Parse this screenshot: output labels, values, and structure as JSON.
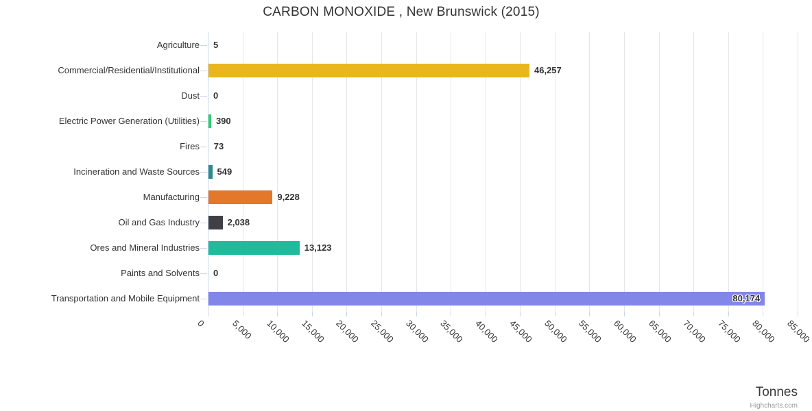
{
  "chart_data": {
    "type": "bar",
    "title": "CARBON MONOXIDE , New Brunswick (2015)",
    "xlabel": "Tonnes",
    "credit": "Highcharts.com",
    "categories": [
      "Agriculture",
      "Commercial/Residential/Institutional",
      "Dust",
      "Electric Power Generation (Utilities)",
      "Fires",
      "Incineration and Waste Sources",
      "Manufacturing",
      "Oil and Gas Industry",
      "Ores and Mineral Industries",
      "Paints and Solvents",
      "Transportation and Mobile Equipment"
    ],
    "values": [
      5,
      46257,
      0,
      390,
      73,
      549,
      9228,
      2038,
      13123,
      0,
      80174
    ],
    "value_labels": [
      "5",
      "46,257",
      "0",
      "390",
      "73",
      "549",
      "9,228",
      "2,038",
      "13,123",
      "0",
      "80,174"
    ],
    "bar_colors": [
      "#999999",
      "#eab61e",
      "#999999",
      "#2ecc71",
      "#999999",
      "#2d8a8a",
      "#e3782a",
      "#3f3f45",
      "#21bb9b",
      "#999999",
      "#8186e8"
    ],
    "xlim": [
      0,
      85000
    ],
    "tick_interval": 5000,
    "x_ticks": [
      "0",
      "5,000",
      "10,000",
      "15,000",
      "20,000",
      "25,000",
      "30,000",
      "35,000",
      "40,000",
      "45,000",
      "50,000",
      "55,000",
      "60,000",
      "65,000",
      "70,000",
      "75,000",
      "80,000",
      "85,000"
    ],
    "grid": true,
    "legend": "none",
    "ui_colors": {
      "axis_line": "#ccd6eb",
      "gridline": "#e6e6e6",
      "text": "#333333",
      "credit_text": "#999999",
      "background": "#ffffff"
    }
  }
}
